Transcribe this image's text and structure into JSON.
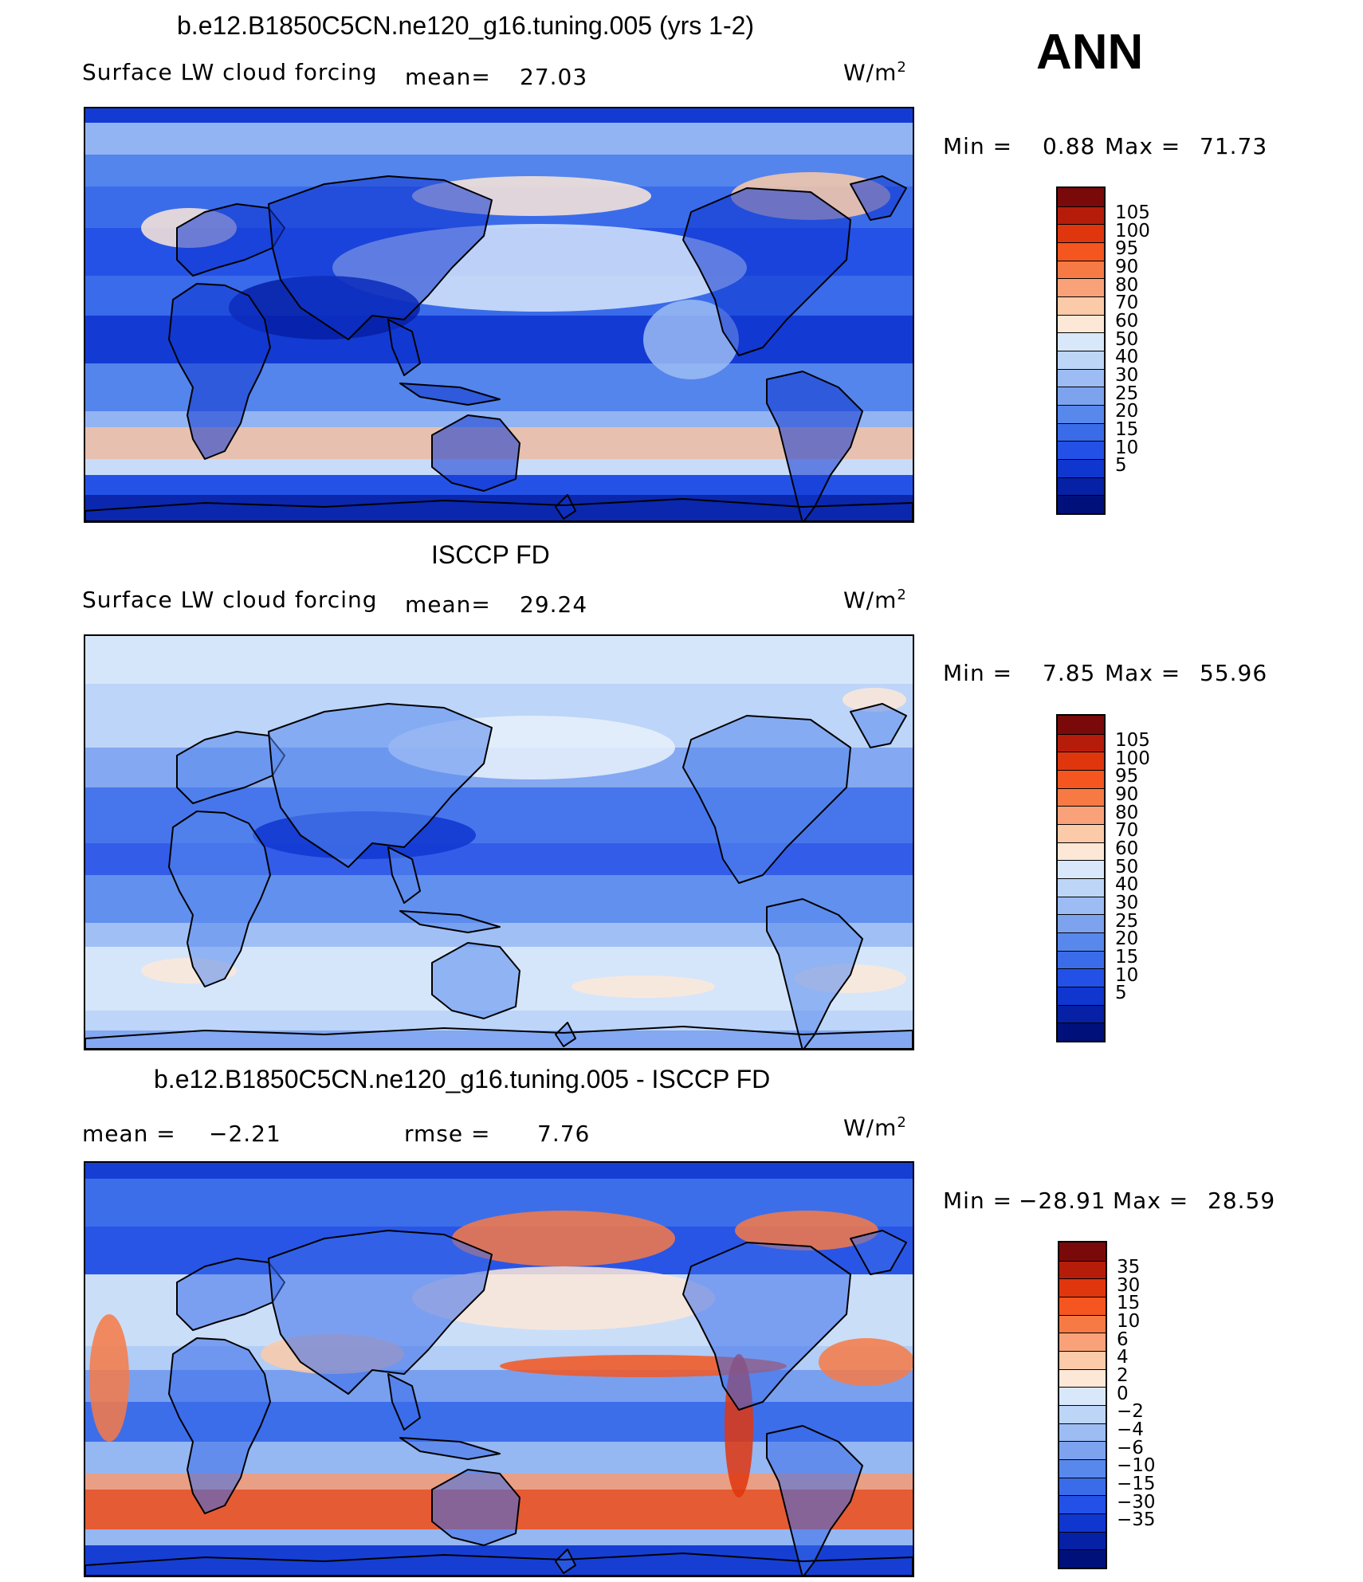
{
  "season": "ANN",
  "panels": [
    {
      "title": "b.e12.B1850C5CN.ne120_g16.tuning.005 (yrs 1-2)",
      "variable": "Surface LW cloud forcing",
      "mean_label": "mean=",
      "mean_value": "27.03",
      "units_base": "W/m",
      "units_exp": "2",
      "min_label": "Min =",
      "min_value": "0.88",
      "max_label": "Max =",
      "max_value": "71.73",
      "map_style": "model"
    },
    {
      "title": "ISCCP FD",
      "variable": "Surface LW cloud forcing",
      "mean_label": "mean=",
      "mean_value": "29.24",
      "units_base": "W/m",
      "units_exp": "2",
      "min_label": "Min =",
      "min_value": "7.85",
      "max_label": "Max =",
      "max_value": "55.96",
      "map_style": "obs"
    },
    {
      "title": "b.e12.B1850C5CN.ne120_g16.tuning.005 - ISCCP FD",
      "mean_label": "mean =",
      "mean_value": "−2.21",
      "rmse_label": "rmse =",
      "rmse_value": "7.76",
      "units_base": "W/m",
      "units_exp": "2",
      "min_label": "Min =",
      "min_value": "−28.91",
      "max_label": "Max =",
      "max_value": "28.59",
      "map_style": "diff"
    }
  ],
  "colorbars": {
    "absolute": {
      "colors": [
        "#7a0a0a",
        "#b51d0a",
        "#e0360e",
        "#f5561f",
        "#f77a45",
        "#f9a27a",
        "#fbcaa8",
        "#fde8d8",
        "#d8e8fa",
        "#bdd5f7",
        "#9cbcf3",
        "#7da3ef",
        "#5888ec",
        "#3a6cea",
        "#2350e6",
        "#1036d0",
        "#0620a6",
        "#00107a"
      ],
      "ticks": [
        "105",
        "100",
        "95",
        "90",
        "80",
        "70",
        "60",
        "50",
        "40",
        "30",
        "25",
        "20",
        "15",
        "10",
        "5"
      ]
    },
    "difference": {
      "colors": [
        "#7a0a0a",
        "#b51d0a",
        "#e0360e",
        "#f5561f",
        "#f77a45",
        "#f9a27a",
        "#fbcaa8",
        "#fde8d8",
        "#d8e8fa",
        "#bdd5f7",
        "#9cbcf3",
        "#7da3ef",
        "#5888ec",
        "#3a6cea",
        "#2350e6",
        "#1036d0",
        "#0620a6",
        "#00107a"
      ],
      "ticks": [
        "35",
        "30",
        "15",
        "10",
        "6",
        "4",
        "2",
        "0",
        "−2",
        "−4",
        "−6",
        "−10",
        "−15",
        "−30",
        "−35"
      ]
    }
  }
}
